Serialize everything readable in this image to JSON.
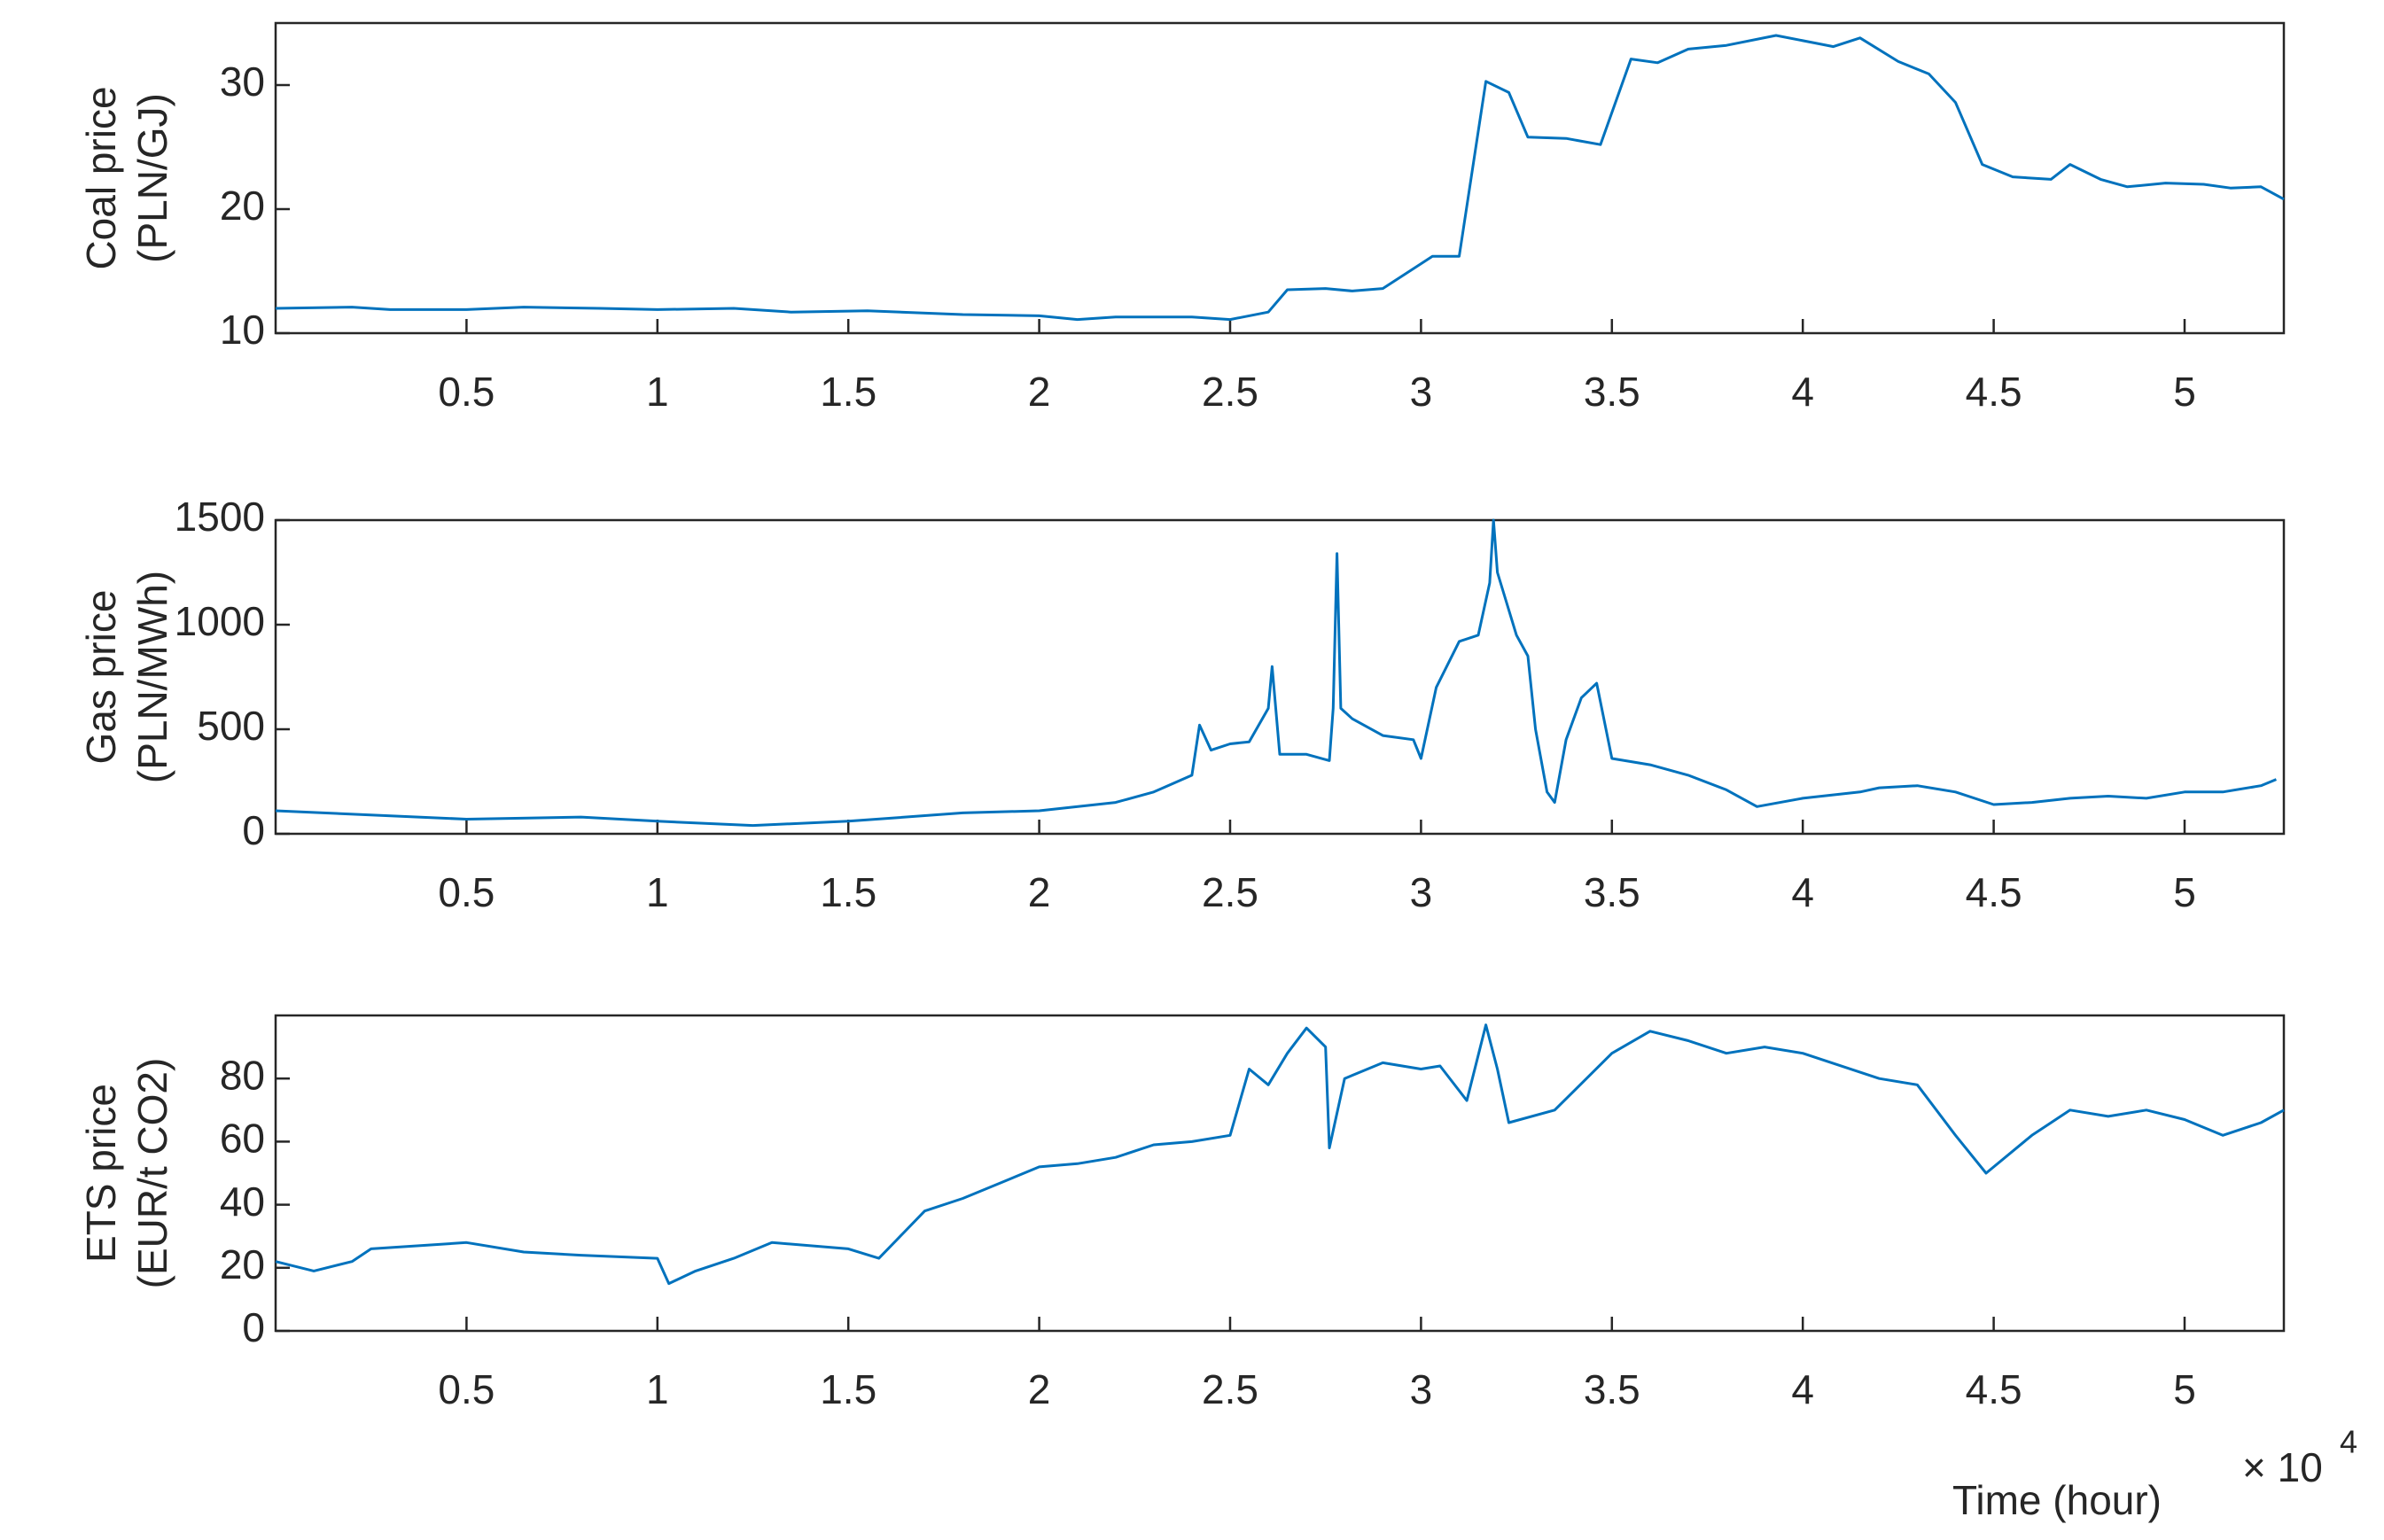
{
  "chart_data": [
    {
      "type": "line",
      "ylabel": [
        "Coal price",
        "(PLN/GJ)"
      ],
      "xlim": [
        0,
        5.26
      ],
      "xticks": [
        0.5,
        1,
        1.5,
        2,
        2.5,
        3,
        3.5,
        4,
        4.5,
        5
      ],
      "ylim": [
        10,
        35
      ],
      "yticks": [
        10,
        20,
        30
      ],
      "series": [
        {
          "color": "#0072bd",
          "x": [
            0,
            0.2,
            0.3,
            0.5,
            0.65,
            0.85,
            1.0,
            1.2,
            1.35,
            1.55,
            1.8,
            2.0,
            2.1,
            2.2,
            2.4,
            2.5,
            2.6,
            2.65,
            2.75,
            2.82,
            2.9,
            2.98,
            3.03,
            3.1,
            3.17,
            3.23,
            3.28,
            3.38,
            3.47,
            3.55,
            3.62,
            3.7,
            3.8,
            3.93,
            4.03,
            4.08,
            4.15,
            4.25,
            4.33,
            4.4,
            4.47,
            4.55,
            4.65,
            4.7,
            4.78,
            4.85,
            4.95,
            5.05,
            5.12,
            5.2,
            5.26
          ],
          "values": [
            12,
            12.1,
            11.9,
            11.9,
            12.1,
            12,
            11.9,
            12,
            11.7,
            11.8,
            11.5,
            11.4,
            11.1,
            11.3,
            11.3,
            11.1,
            11.7,
            13.5,
            13.6,
            13.4,
            13.6,
            15.2,
            16.2,
            16.2,
            30.3,
            29.4,
            25.8,
            25.7,
            25.2,
            32.1,
            31.8,
            32.9,
            33.2,
            34,
            33.4,
            33.1,
            33.8,
            31.9,
            30.9,
            28.6,
            23.6,
            22.6,
            22.4,
            23.6,
            22.4,
            21.8,
            22.1,
            22,
            21.7,
            21.8,
            20.8
          ]
        }
      ]
    },
    {
      "type": "line",
      "ylabel": [
        "Gas price",
        "(PLN/MWh)"
      ],
      "xlim": [
        0,
        5.26
      ],
      "xticks": [
        0.5,
        1,
        1.5,
        2,
        2.5,
        3,
        3.5,
        4,
        4.5,
        5
      ],
      "ylim": [
        0,
        1500
      ],
      "yticks": [
        0,
        500,
        1000,
        1500
      ],
      "series": [
        {
          "color": "#0072bd",
          "x": [
            0,
            0.5,
            0.8,
            1.0,
            1.25,
            1.5,
            1.8,
            2.0,
            2.2,
            2.3,
            2.4,
            2.42,
            2.45,
            2.5,
            2.55,
            2.6,
            2.61,
            2.63,
            2.7,
            2.76,
            2.77,
            2.78,
            2.79,
            2.82,
            2.9,
            2.98,
            3.0,
            3.04,
            3.1,
            3.15,
            3.18,
            3.19,
            3.2,
            3.25,
            3.28,
            3.3,
            3.33,
            3.35,
            3.38,
            3.42,
            3.46,
            3.5,
            3.6,
            3.7,
            3.8,
            3.88,
            4.0,
            4.15,
            4.2,
            4.3,
            4.4,
            4.5,
            4.6,
            4.7,
            4.8,
            4.9,
            5.0,
            5.1,
            5.2,
            5.24
          ],
          "values": [
            110,
            70,
            80,
            60,
            40,
            60,
            100,
            110,
            150,
            200,
            280,
            520,
            400,
            430,
            440,
            600,
            800,
            380,
            380,
            350,
            600,
            1340,
            600,
            550,
            470,
            450,
            360,
            700,
            920,
            950,
            1200,
            1500,
            1250,
            950,
            850,
            500,
            200,
            150,
            450,
            650,
            720,
            360,
            330,
            280,
            210,
            130,
            170,
            200,
            220,
            230,
            200,
            140,
            150,
            170,
            180,
            170,
            200,
            200,
            230,
            260
          ]
        }
      ]
    },
    {
      "type": "line",
      "ylabel": [
        "ETS price",
        "(EUR/t CO2)"
      ],
      "xlabel": "Time (hour)",
      "x_multiplier": {
        "base": "× 10",
        "power": "4"
      },
      "xlim": [
        0,
        5.26
      ],
      "xticks": [
        0.5,
        1,
        1.5,
        2,
        2.5,
        3,
        3.5,
        4,
        4.5,
        5
      ],
      "ylim": [
        0,
        100
      ],
      "yticks": [
        0,
        20,
        40,
        60,
        80
      ],
      "series": [
        {
          "color": "#0072bd",
          "x": [
            0,
            0.1,
            0.2,
            0.25,
            0.5,
            0.65,
            0.8,
            1.0,
            1.03,
            1.1,
            1.2,
            1.3,
            1.5,
            1.58,
            1.7,
            1.8,
            1.9,
            2.0,
            2.1,
            2.2,
            2.3,
            2.4,
            2.5,
            2.55,
            2.6,
            2.65,
            2.7,
            2.75,
            2.76,
            2.8,
            2.9,
            3.0,
            3.05,
            3.12,
            3.17,
            3.2,
            3.23,
            3.35,
            3.45,
            3.5,
            3.6,
            3.7,
            3.8,
            3.9,
            4.0,
            4.2,
            4.3,
            4.4,
            4.48,
            4.6,
            4.7,
            4.8,
            4.9,
            5.0,
            5.1,
            5.2,
            5.26
          ],
          "values": [
            22,
            19,
            22,
            26,
            28,
            25,
            24,
            23,
            15,
            19,
            23,
            28,
            26,
            23,
            38,
            42,
            47,
            52,
            53,
            55,
            59,
            60,
            62,
            83,
            78,
            88,
            96,
            90,
            58,
            80,
            85,
            83,
            84,
            73,
            97,
            83,
            66,
            70,
            82,
            88,
            95,
            92,
            88,
            90,
            88,
            80,
            78,
            62,
            50,
            62,
            70,
            68,
            70,
            67,
            62,
            66,
            70
          ]
        }
      ]
    }
  ]
}
